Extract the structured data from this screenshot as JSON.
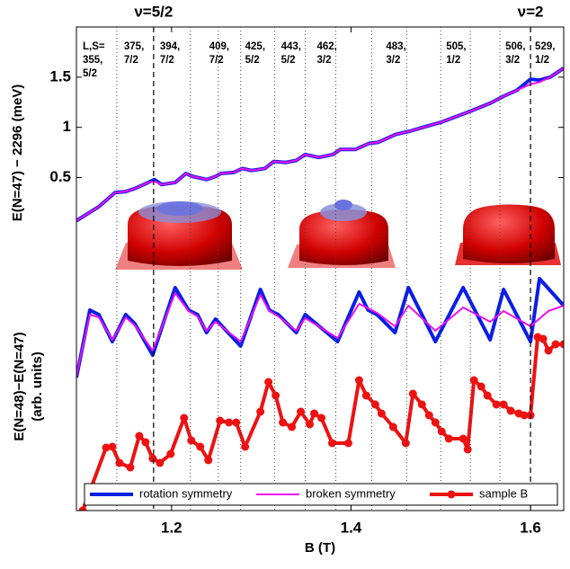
{
  "chart_data": [
    {
      "type": "line",
      "ylabel": "E(N=47) − 2296 (meV)",
      "xlim": [
        1.094,
        1.637
      ],
      "ylim": [
        -0.4,
        2.0
      ],
      "yticks": [
        0.5,
        1,
        1.5
      ],
      "markers": [
        {
          "text": "ν=5/2",
          "x": 1.18
        },
        {
          "text": "ν=2",
          "x": 1.6
        }
      ],
      "transitions": [
        1.139,
        1.221,
        1.252,
        1.277,
        1.315,
        1.349,
        1.383,
        1.423,
        1.462,
        1.5,
        1.533,
        1.566
      ],
      "states": [
        {
          "x": 1.101,
          "lines": [
            "L,S=",
            "355,",
            "5/2"
          ]
        },
        {
          "x": 1.147,
          "lines": [
            "375,",
            "7/2"
          ]
        },
        {
          "x": 1.187,
          "lines": [
            "394,",
            "7/2"
          ]
        },
        {
          "x": 1.242,
          "lines": [
            "409,",
            "7/2"
          ]
        },
        {
          "x": 1.282,
          "lines": [
            "425,",
            "5/2"
          ]
        },
        {
          "x": 1.322,
          "lines": [
            "443,",
            "5/2"
          ]
        },
        {
          "x": 1.362,
          "lines": [
            "462,",
            "3/2"
          ]
        },
        {
          "x": 1.439,
          "lines": [
            "483,",
            "3/2"
          ]
        },
        {
          "x": 1.506,
          "lines": [
            "505,",
            "1/2"
          ]
        },
        {
          "x": 1.572,
          "lines": [
            "506,",
            "3/2"
          ]
        },
        {
          "x": 1.605,
          "lines": [
            "529,",
            "1/2"
          ]
        }
      ],
      "series": [
        {
          "color": "#0a1ee6",
          "width": 4,
          "x": [
            1.094,
            1.119,
            1.137,
            1.149,
            1.159,
            1.174,
            1.181,
            1.189,
            1.204,
            1.216,
            1.224,
            1.239,
            1.249,
            1.255,
            1.269,
            1.279,
            1.289,
            1.304,
            1.314,
            1.327,
            1.339,
            1.349,
            1.364,
            1.38,
            1.388,
            1.405,
            1.42,
            1.43,
            1.45,
            1.465,
            1.48,
            1.5,
            1.515,
            1.53,
            1.555,
            1.57,
            1.585,
            1.6,
            1.61,
            1.622,
            1.637
          ],
          "values": [
            0.07,
            0.21,
            0.35,
            0.36,
            0.39,
            0.45,
            0.48,
            0.43,
            0.45,
            0.54,
            0.51,
            0.48,
            0.51,
            0.54,
            0.55,
            0.59,
            0.57,
            0.59,
            0.66,
            0.65,
            0.67,
            0.73,
            0.7,
            0.73,
            0.78,
            0.78,
            0.84,
            0.85,
            0.93,
            0.96,
            1.0,
            1.05,
            1.1,
            1.15,
            1.24,
            1.31,
            1.37,
            1.48,
            1.47,
            1.5,
            1.59
          ]
        },
        {
          "color": "#ee10ee",
          "width": 2,
          "x": [
            1.094,
            1.119,
            1.137,
            1.149,
            1.159,
            1.174,
            1.181,
            1.189,
            1.204,
            1.216,
            1.224,
            1.239,
            1.249,
            1.255,
            1.269,
            1.279,
            1.289,
            1.304,
            1.314,
            1.327,
            1.339,
            1.349,
            1.364,
            1.38,
            1.388,
            1.405,
            1.42,
            1.43,
            1.45,
            1.465,
            1.48,
            1.5,
            1.515,
            1.53,
            1.555,
            1.57,
            1.585,
            1.6,
            1.61,
            1.622,
            1.637
          ],
          "values": [
            0.07,
            0.21,
            0.35,
            0.36,
            0.39,
            0.45,
            0.46,
            0.43,
            0.45,
            0.54,
            0.51,
            0.48,
            0.51,
            0.54,
            0.55,
            0.59,
            0.57,
            0.59,
            0.66,
            0.65,
            0.67,
            0.73,
            0.7,
            0.73,
            0.78,
            0.78,
            0.84,
            0.85,
            0.93,
            0.96,
            1.0,
            1.05,
            1.1,
            1.15,
            1.24,
            1.31,
            1.37,
            1.43,
            1.45,
            1.5,
            1.59
          ]
        }
      ]
    },
    {
      "type": "line",
      "ylabel": [
        "E(N=48)−E(N=47)",
        "(arb. units)"
      ],
      "xlabel": "B (T)",
      "xlim": [
        1.094,
        1.637
      ],
      "xticks": [
        1.2,
        1.4,
        1.6
      ],
      "ylim": [
        0,
        270
      ],
      "legend": "bottom",
      "series": [
        {
          "name": "rotation symmetry",
          "color": "#0a1ee6",
          "width": 4,
          "x": [
            1.094,
            1.109,
            1.119,
            1.134,
            1.149,
            1.159,
            1.179,
            1.204,
            1.219,
            1.229,
            1.239,
            1.249,
            1.277,
            1.299,
            1.309,
            1.319,
            1.339,
            1.349,
            1.385,
            1.409,
            1.419,
            1.429,
            1.449,
            1.464,
            1.494,
            1.525,
            1.555,
            1.57,
            1.6,
            1.61,
            1.637
          ],
          "values": [
            148,
            223,
            218,
            188,
            218,
            208,
            173,
            248,
            223,
            218,
            198,
            213,
            183,
            246,
            223,
            218,
            198,
            218,
            188,
            243,
            223,
            218,
            198,
            248,
            188,
            248,
            190,
            246,
            188,
            258,
            228
          ]
        },
        {
          "name": "broken symmetry",
          "color": "#ee10ee",
          "width": 2,
          "x": [
            1.094,
            1.109,
            1.119,
            1.134,
            1.149,
            1.159,
            1.179,
            1.204,
            1.219,
            1.229,
            1.239,
            1.249,
            1.277,
            1.299,
            1.309,
            1.319,
            1.339,
            1.349,
            1.385,
            1.409,
            1.429,
            1.449,
            1.464,
            1.494,
            1.525,
            1.555,
            1.57,
            1.6,
            1.62,
            1.637
          ],
          "values": [
            150,
            218,
            215,
            190,
            215,
            206,
            178,
            242,
            222,
            216,
            200,
            210,
            188,
            240,
            222,
            216,
            200,
            214,
            192,
            230,
            220,
            205,
            228,
            200,
            226,
            210,
            222,
            205,
            222,
            228
          ]
        },
        {
          "name": "sample B",
          "color": "#ee1111",
          "width": 4,
          "marker": "circle",
          "x": [
            1.101,
            1.127,
            1.134,
            1.142,
            1.154,
            1.164,
            1.171,
            1.179,
            1.187,
            1.199,
            1.214,
            1.222,
            1.232,
            1.241,
            1.254,
            1.264,
            1.272,
            1.282,
            1.299,
            1.308,
            1.316,
            1.324,
            1.334,
            1.344,
            1.354,
            1.359,
            1.367,
            1.379,
            1.397,
            1.409,
            1.417,
            1.427,
            1.434,
            1.447,
            1.461,
            1.469,
            1.479,
            1.487,
            1.494,
            1.501,
            1.509,
            1.525,
            1.53,
            1.537,
            1.545,
            1.552,
            1.562,
            1.57,
            1.578,
            1.587,
            1.593,
            1.6,
            1.608,
            1.614,
            1.62,
            1.628,
            1.637
          ],
          "values": [
            0,
            70,
            71,
            53,
            48,
            83,
            76,
            58,
            53,
            63,
            103,
            78,
            71,
            56,
            100,
            98,
            98,
            71,
            110,
            143,
            128,
            98,
            93,
            110,
            96,
            108,
            103,
            75,
            75,
            145,
            128,
            118,
            108,
            93,
            75,
            130,
            118,
            106,
            98,
            88,
            80,
            80,
            68,
            145,
            138,
            128,
            118,
            118,
            111,
            108,
            106,
            106,
            193,
            191,
            178,
            185,
            185
          ]
        }
      ]
    }
  ]
}
